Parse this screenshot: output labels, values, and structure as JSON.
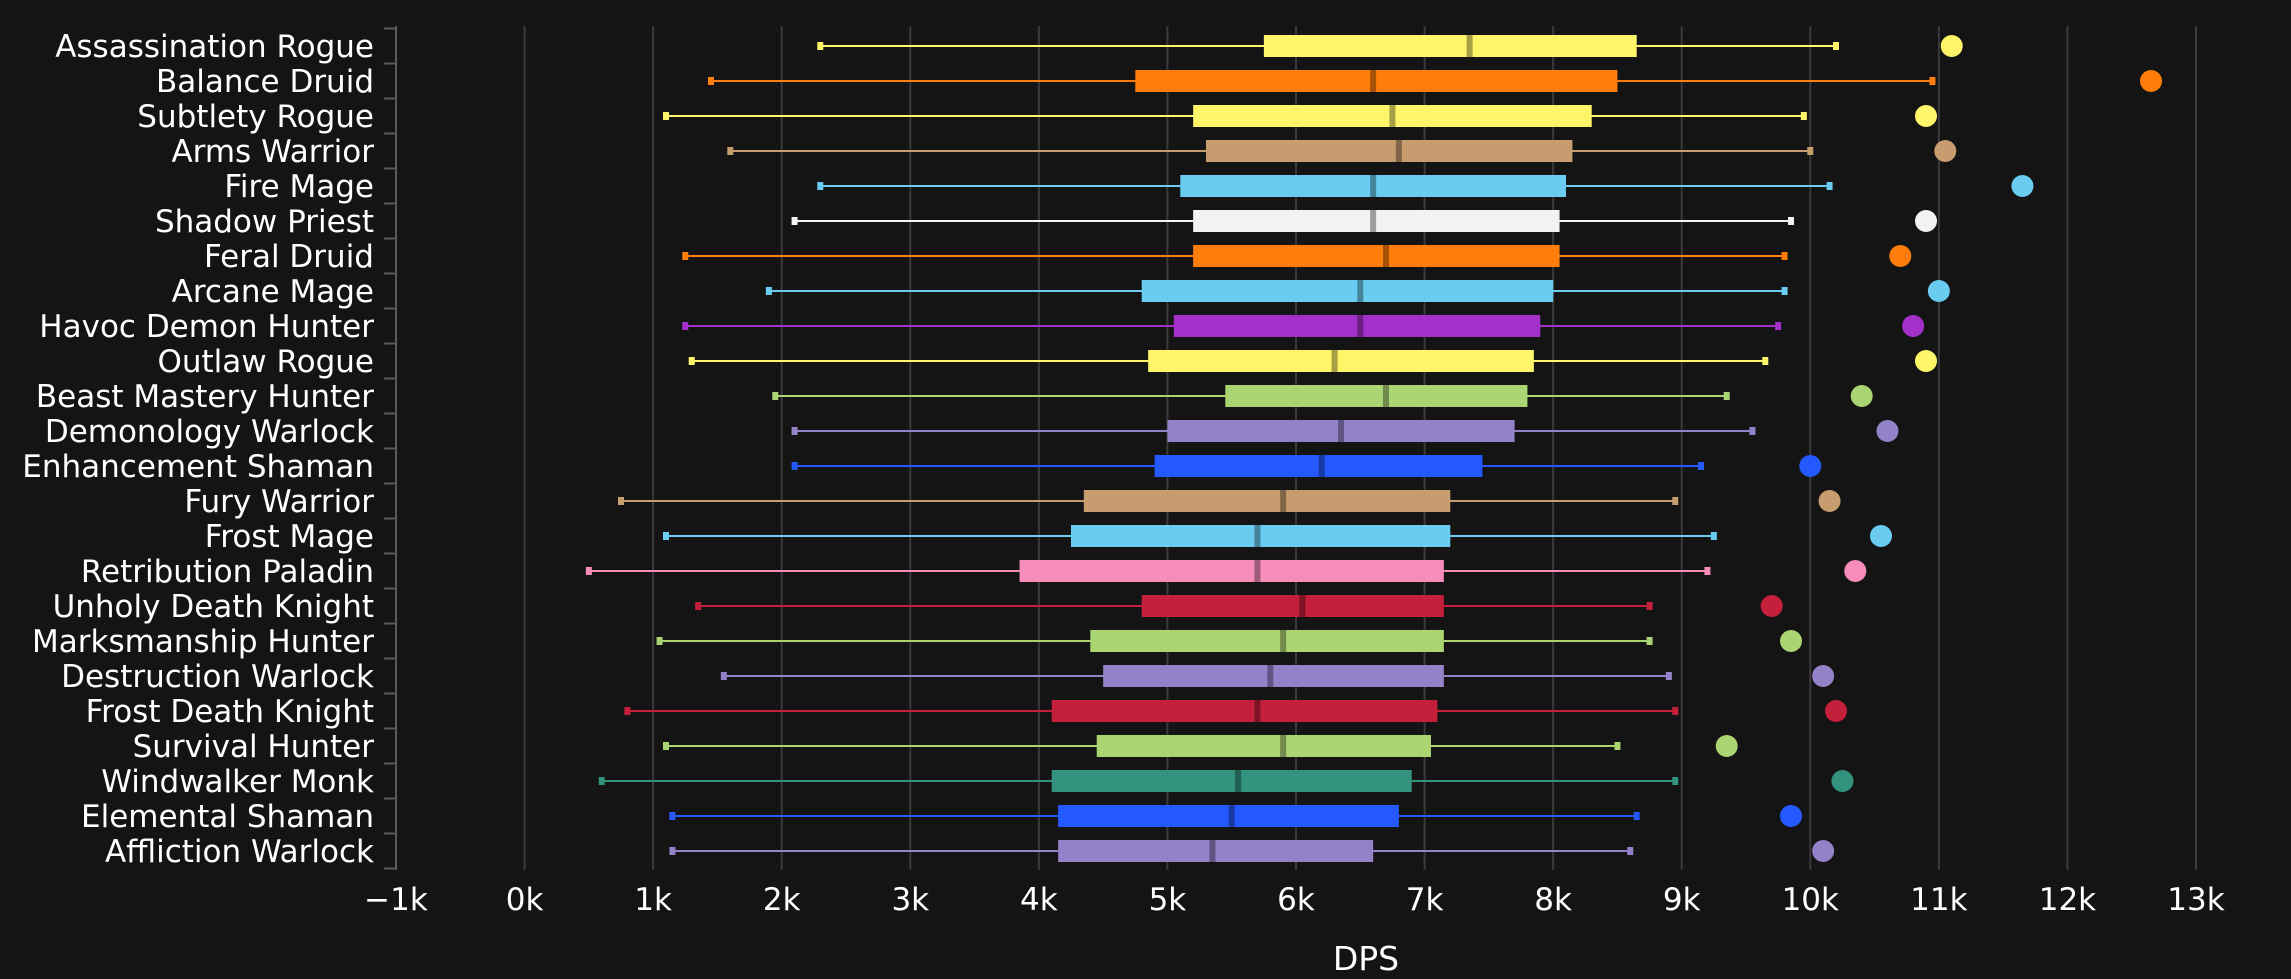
{
  "chart_data": {
    "type": "box",
    "title": "",
    "xlabel": "DPS",
    "ylabel": "",
    "xlim": [
      -1000,
      13000
    ],
    "grid": true,
    "x_ticks": [
      -1000,
      0,
      1000,
      2000,
      3000,
      4000,
      5000,
      6000,
      7000,
      8000,
      9000,
      10000,
      11000,
      12000,
      13000
    ],
    "x_tick_labels": [
      "−1k",
      "0k",
      "1k",
      "2k",
      "3k",
      "4k",
      "5k",
      "6k",
      "7k",
      "8k",
      "9k",
      "10k",
      "11k",
      "12k",
      "13k"
    ],
    "series": [
      {
        "category": "Assassination Rogue",
        "color": "#fff569",
        "min": 2300,
        "q1": 5750,
        "median": 7350,
        "q3": 8650,
        "max": 10200,
        "outlier": 11100
      },
      {
        "category": "Balance Druid",
        "color": "#ff7d0a",
        "min": 1450,
        "q1": 4750,
        "median": 6600,
        "q3": 8500,
        "max": 10950,
        "outlier": 12650
      },
      {
        "category": "Subtlety Rogue",
        "color": "#fff569",
        "min": 1100,
        "q1": 5200,
        "median": 6750,
        "q3": 8300,
        "max": 9950,
        "outlier": 10900
      },
      {
        "category": "Arms Warrior",
        "color": "#c79c6e",
        "min": 1600,
        "q1": 5300,
        "median": 6800,
        "q3": 8150,
        "max": 10000,
        "outlier": 11050
      },
      {
        "category": "Fire Mage",
        "color": "#69ccf0",
        "min": 2300,
        "q1": 5100,
        "median": 6600,
        "q3": 8100,
        "max": 10150,
        "outlier": 11650
      },
      {
        "category": "Shadow Priest",
        "color": "#f2f2f2",
        "min": 2100,
        "q1": 5200,
        "median": 6600,
        "q3": 8050,
        "max": 9850,
        "outlier": 10900
      },
      {
        "category": "Feral Druid",
        "color": "#ff7d0a",
        "min": 1250,
        "q1": 5200,
        "median": 6700,
        "q3": 8050,
        "max": 9800,
        "outlier": 10700
      },
      {
        "category": "Arcane Mage",
        "color": "#69ccf0",
        "min": 1900,
        "q1": 4800,
        "median": 6500,
        "q3": 8000,
        "max": 9800,
        "outlier": 11000
      },
      {
        "category": "Havoc Demon Hunter",
        "color": "#a330c9",
        "min": 1250,
        "q1": 5050,
        "median": 6500,
        "q3": 7900,
        "max": 9750,
        "outlier": 10800
      },
      {
        "category": "Outlaw Rogue",
        "color": "#fff569",
        "min": 1300,
        "q1": 4850,
        "median": 6300,
        "q3": 7850,
        "max": 9650,
        "outlier": 10900
      },
      {
        "category": "Beast Mastery Hunter",
        "color": "#abd473",
        "min": 1950,
        "q1": 5450,
        "median": 6700,
        "q3": 7800,
        "max": 9350,
        "outlier": 10400
      },
      {
        "category": "Demonology Warlock",
        "color": "#9482c9",
        "min": 2100,
        "q1": 5000,
        "median": 6350,
        "q3": 7700,
        "max": 9550,
        "outlier": 10600
      },
      {
        "category": "Enhancement Shaman",
        "color": "#2459ff",
        "min": 2100,
        "q1": 4900,
        "median": 6200,
        "q3": 7450,
        "max": 9150,
        "outlier": 10000
      },
      {
        "category": "Fury Warrior",
        "color": "#c79c6e",
        "min": 750,
        "q1": 4350,
        "median": 5900,
        "q3": 7200,
        "max": 8950,
        "outlier": 10150
      },
      {
        "category": "Frost Mage",
        "color": "#69ccf0",
        "min": 1100,
        "q1": 4250,
        "median": 5700,
        "q3": 7200,
        "max": 9250,
        "outlier": 10550
      },
      {
        "category": "Retribution Paladin",
        "color": "#f58cba",
        "min": 500,
        "q1": 3850,
        "median": 5700,
        "q3": 7150,
        "max": 9200,
        "outlier": 10350
      },
      {
        "category": "Unholy Death Knight",
        "color": "#c41f3b",
        "min": 1350,
        "q1": 4800,
        "median": 6050,
        "q3": 7150,
        "max": 8750,
        "outlier": 9700
      },
      {
        "category": "Marksmanship Hunter",
        "color": "#abd473",
        "min": 1050,
        "q1": 4400,
        "median": 5900,
        "q3": 7150,
        "max": 8750,
        "outlier": 9850
      },
      {
        "category": "Destruction Warlock",
        "color": "#9482c9",
        "min": 1550,
        "q1": 4500,
        "median": 5800,
        "q3": 7150,
        "max": 8900,
        "outlier": 10100
      },
      {
        "category": "Frost Death Knight",
        "color": "#c41f3b",
        "min": 800,
        "q1": 4100,
        "median": 5700,
        "q3": 7100,
        "max": 8950,
        "outlier": 10200
      },
      {
        "category": "Survival Hunter",
        "color": "#abd473",
        "min": 1100,
        "q1": 4450,
        "median": 5900,
        "q3": 7050,
        "max": 8500,
        "outlier": 9350
      },
      {
        "category": "Windwalker Monk",
        "color": "#33937f",
        "min": 600,
        "q1": 4100,
        "median": 5550,
        "q3": 6900,
        "max": 8950,
        "outlier": 10250
      },
      {
        "category": "Elemental Shaman",
        "color": "#2459ff",
        "min": 1150,
        "q1": 4150,
        "median": 5500,
        "q3": 6800,
        "max": 8650,
        "outlier": 9850
      },
      {
        "category": "Affliction Warlock",
        "color": "#9482c9",
        "min": 1150,
        "q1": 4150,
        "median": 5350,
        "q3": 6600,
        "max": 8600,
        "outlier": 10100
      }
    ]
  }
}
